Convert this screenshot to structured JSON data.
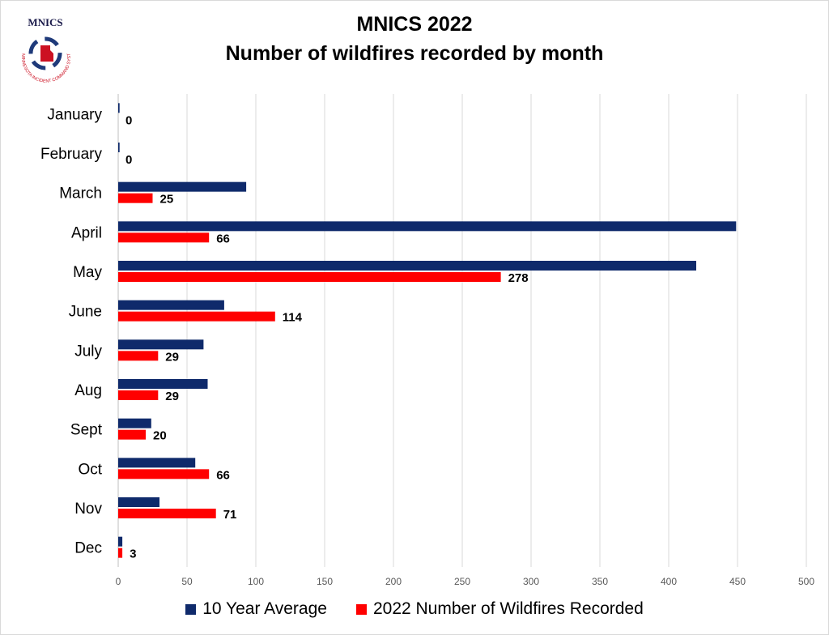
{
  "header": {
    "title_line1": "MNICS 2022",
    "title_line2": "Number of wildfires recorded by month"
  },
  "logo": {
    "text": "MNICS",
    "ring_text": "MINNESOTA INCIDENT COMMAND SYSTEM"
  },
  "colors": {
    "avg": "#0f2a6b",
    "recorded": "#ff0000",
    "grid": "#d9d9d9",
    "axis": "#bfbfbf"
  },
  "chart_data": {
    "type": "bar",
    "orientation": "horizontal",
    "title": "MNICS 2022 Number of wildfires recorded by month",
    "categories": [
      "January",
      "February",
      "March",
      "April",
      "May",
      "June",
      "July",
      "Aug",
      "Sept",
      "Oct",
      "Nov",
      "Dec"
    ],
    "series": [
      {
        "name": "10 Year Average",
        "values": [
          1,
          1,
          93,
          449,
          420,
          77,
          62,
          65,
          24,
          56,
          30,
          3
        ]
      },
      {
        "name": "2022 Number of Wildfires Recorded",
        "values": [
          0,
          0,
          25,
          66,
          278,
          114,
          29,
          29,
          20,
          66,
          71,
          3
        ]
      }
    ],
    "data_labels": [
      "0",
      "0",
      "25",
      "66",
      "278",
      "114",
      "29",
      "29",
      "20",
      "66",
      "71",
      "3"
    ],
    "xlim": [
      0,
      500
    ],
    "x_ticks": [
      0,
      50,
      100,
      150,
      200,
      250,
      300,
      350,
      400,
      450,
      500
    ],
    "grid": true,
    "legend_position": "bottom"
  }
}
